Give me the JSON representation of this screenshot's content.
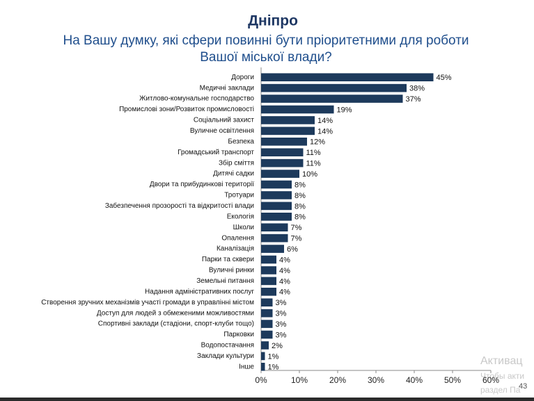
{
  "chart_data": {
    "type": "barh",
    "title": "Дніпро",
    "subtitle": [
      "На Вашу думку, які сфери повинні бути пріоритетними для роботи",
      "Вашої міської влади?"
    ],
    "categories": [
      "Дороги",
      "Медичні заклади",
      "Житлово-комунальне господарство",
      "Промислові зони/Розвиток промисловості",
      "Соціальний захист",
      "Вуличне освітлення",
      "Безпека",
      "Громадський транспорт",
      "Збір сміття",
      "Дитячі садки",
      "Двори та прибудинкові території",
      "Тротуари",
      "Забезпечення прозорості та відкритості влади",
      "Екологія",
      "Школи",
      "Опалення",
      "Каналізація",
      "Парки та сквери",
      "Вуличні ринки",
      "Земельні питання",
      "Надання адміністративних послуг",
      "Створення зручних механізмів участі громади в управлінні містом",
      "Доступ для людей з обмеженими можливостями",
      "Спортивні заклади (стадіони, спорт-клуби тощо)",
      "Парковки",
      "Водопостачання",
      "Заклади культури",
      "Інше"
    ],
    "values": [
      45,
      38,
      37,
      19,
      14,
      14,
      12,
      11,
      11,
      10,
      8,
      8,
      8,
      8,
      7,
      7,
      6,
      4,
      4,
      4,
      4,
      3,
      3,
      3,
      3,
      2,
      1,
      1
    ],
    "value_labels": [
      "45%",
      "38%",
      "37%",
      "19%",
      "14%",
      "14%",
      "12%",
      "11%",
      "11%",
      "10%",
      "8%",
      "8%",
      "8%",
      "8%",
      "7%",
      "7%",
      "6%",
      "4%",
      "4%",
      "4%",
      "4%",
      "3%",
      "3%",
      "3%",
      "3%",
      "2%",
      "1%",
      "1%"
    ],
    "color": "#1d3a5c",
    "xlim": [
      0,
      60
    ],
    "xticks": [
      {
        "value": 0,
        "label": "0%"
      },
      {
        "value": 10,
        "label": "10%"
      },
      {
        "value": 20,
        "label": "20%"
      },
      {
        "value": 30,
        "label": "30%"
      },
      {
        "value": 40,
        "label": "40%"
      },
      {
        "value": 50,
        "label": "50%"
      },
      {
        "value": 60,
        "label": "60%"
      }
    ],
    "grid": false
  },
  "page_number": "43",
  "watermark": [
    "Активац",
    "Чтобы акти",
    "раздел  Па"
  ]
}
